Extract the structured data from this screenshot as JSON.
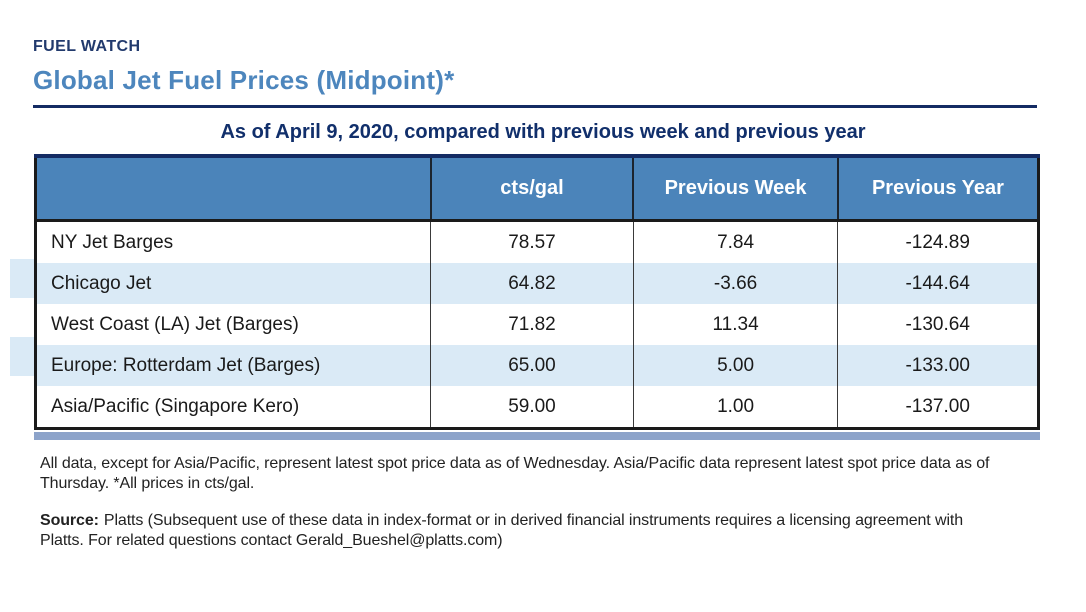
{
  "masthead": {
    "kicker": "FUEL WATCH",
    "title": "Global Jet Fuel Prices (Midpoint)*"
  },
  "subtitle": "As of April 9, 2020, compared with previous week and previous year",
  "chart_data": {
    "type": "table",
    "columns": [
      "",
      "cts/gal",
      "Previous Week",
      "Previous Year"
    ],
    "rows": [
      [
        "NY Jet Barges",
        "78.57",
        "7.84",
        "-124.89"
      ],
      [
        "Chicago Jet",
        "64.82",
        "-3.66",
        "-144.64"
      ],
      [
        "West Coast (LA) Jet (Barges)",
        "71.82",
        "11.34",
        "-130.64"
      ],
      [
        "Europe: Rotterdam Jet (Barges)",
        "65.00",
        "5.00",
        "-133.00"
      ],
      [
        "Asia/Pacific (Singapore Kero)",
        "59.00",
        "1.00",
        "-137.00"
      ]
    ],
    "layout": {
      "striped_row_indexes": [
        1,
        3
      ],
      "legend": "none",
      "grid": "vertical dividers only"
    }
  },
  "notes": {
    "footnote": "All data, except for Asia/Pacific, represent latest spot price data as of Wednesday. Asia/Pacific data represent latest spot price data as of Thursday. *All prices in cts/gal.",
    "source_label": "Source:",
    "source_text": "Platts (Subsequent use of these data in index-format or in derived financial instruments requires a licensing agreement with Platts. For related questions contact Gerald_Bueshel@platts.com)"
  },
  "colors": {
    "navy": "#142b63",
    "kicker_navy": "#223a6d",
    "title_blue": "#4d86bd",
    "header_bg": "#4b84ba",
    "header_text": "#ffffff",
    "stripe_blue": "#daeaf6",
    "bottom_band": "#8ca3ca",
    "border_dark": "#1a1a1a"
  }
}
